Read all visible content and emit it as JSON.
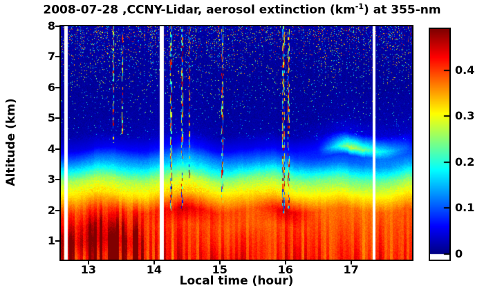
{
  "figure": {
    "title_prefix": "2008-07-28 ,CCNY-Lidar, aerosol extinction (km",
    "title_sup": "-1",
    "title_suffix": ") at 355-nm"
  },
  "colors": {
    "background": "#ffffff",
    "axis": "#000000"
  },
  "chart_data": {
    "type": "heatmap",
    "title": "2008-07-28 ,CCNY-Lidar, aerosol extinction (km^-1) at 355-nm",
    "xlabel": "Local time (hour)",
    "ylabel": "Altitude (km)",
    "x_range": [
      12.58,
      17.93
    ],
    "y_range": [
      0.4,
      8.0
    ],
    "x_ticks": [
      13,
      14,
      15,
      16,
      17
    ],
    "y_ticks": [
      1,
      2,
      3,
      4,
      5,
      6,
      7,
      8
    ],
    "colorbar": {
      "colormap": "jet",
      "vmax": 0.49,
      "ticks": [
        0,
        0.1,
        0.2,
        0.3,
        0.4
      ],
      "tick_labels": [
        "0",
        "0.1",
        "0.2",
        "0.3",
        "0.4"
      ],
      "below_zero_color": "#ffffff"
    },
    "grid": {
      "times": [
        12.6,
        13.0,
        13.5,
        14.0,
        14.5,
        15.0,
        15.5,
        16.0,
        16.5,
        17.0,
        17.5,
        17.95
      ],
      "altitudes": [
        0.5,
        1.0,
        1.5,
        2.0,
        2.5,
        3.0,
        3.25,
        3.5,
        3.75,
        4.0,
        4.5,
        5.0,
        6.0,
        7.0,
        8.0
      ],
      "extinction_km_inv": [
        [
          0.44,
          0.48,
          0.49,
          0.45,
          0.42,
          0.42,
          0.41,
          0.42,
          0.41,
          0.4,
          0.41,
          0.42
        ],
        [
          0.46,
          0.5,
          0.5,
          0.44,
          0.41,
          0.4,
          0.4,
          0.41,
          0.4,
          0.39,
          0.4,
          0.41
        ],
        [
          0.42,
          0.47,
          0.45,
          0.42,
          0.4,
          0.39,
          0.38,
          0.4,
          0.39,
          0.38,
          0.39,
          0.4
        ],
        [
          0.39,
          0.41,
          0.4,
          0.42,
          0.45,
          0.4,
          0.38,
          0.45,
          0.38,
          0.37,
          0.38,
          0.39
        ],
        [
          0.32,
          0.33,
          0.32,
          0.33,
          0.34,
          0.33,
          0.32,
          0.33,
          0.31,
          0.3,
          0.31,
          0.32
        ],
        [
          0.26,
          0.27,
          0.26,
          0.27,
          0.28,
          0.26,
          0.25,
          0.26,
          0.24,
          0.22,
          0.24,
          0.25
        ],
        [
          0.2,
          0.21,
          0.2,
          0.22,
          0.22,
          0.2,
          0.19,
          0.21,
          0.18,
          0.16,
          0.18,
          0.19
        ],
        [
          0.14,
          0.15,
          0.15,
          0.16,
          0.17,
          0.15,
          0.13,
          0.15,
          0.12,
          0.11,
          0.13,
          0.14
        ],
        [
          0.09,
          0.1,
          0.11,
          0.12,
          0.13,
          0.11,
          0.09,
          0.1,
          0.08,
          0.09,
          0.12,
          0.1
        ],
        [
          0.05,
          0.05,
          0.06,
          0.07,
          0.08,
          0.06,
          0.05,
          0.06,
          0.07,
          0.28,
          0.18,
          0.08
        ],
        [
          0.02,
          0.02,
          0.02,
          0.03,
          0.03,
          0.02,
          0.02,
          0.02,
          0.03,
          0.05,
          0.04,
          0.03
        ],
        [
          0.015,
          0.015,
          0.015,
          0.02,
          0.02,
          0.015,
          0.015,
          0.015,
          0.015,
          0.02,
          0.02,
          0.02
        ],
        [
          0.012,
          0.012,
          0.012,
          0.015,
          0.015,
          0.012,
          0.012,
          0.012,
          0.012,
          0.012,
          0.012,
          0.012
        ],
        [
          0.012,
          0.013,
          0.013,
          0.013,
          0.012,
          0.012,
          0.012,
          0.012,
          0.012,
          0.012,
          0.012,
          0.012
        ],
        [
          0.015,
          0.016,
          0.016,
          0.016,
          0.015,
          0.015,
          0.015,
          0.015,
          0.015,
          0.015,
          0.015,
          0.015
        ]
      ]
    },
    "data_gaps_hours": [
      {
        "t": 12.66,
        "w": 0.05
      },
      {
        "t": 14.12,
        "w": 0.06
      },
      {
        "t": 17.35,
        "w": 0.05
      }
    ],
    "cloud_streaks_hours": [
      {
        "t": 13.38,
        "w": 0.018,
        "base_alt": 4.2
      },
      {
        "t": 13.52,
        "w": 0.018,
        "base_alt": 4.5
      },
      {
        "t": 14.26,
        "w": 0.035,
        "base_alt": 2.0
      },
      {
        "t": 14.43,
        "w": 0.03,
        "base_alt": 2.0
      },
      {
        "t": 14.54,
        "w": 0.022,
        "base_alt": 3.0
      },
      {
        "t": 15.04,
        "w": 0.028,
        "base_alt": 2.2
      },
      {
        "t": 15.97,
        "w": 0.04,
        "base_alt": 1.9
      },
      {
        "t": 16.05,
        "w": 0.025,
        "base_alt": 2.0
      }
    ]
  }
}
